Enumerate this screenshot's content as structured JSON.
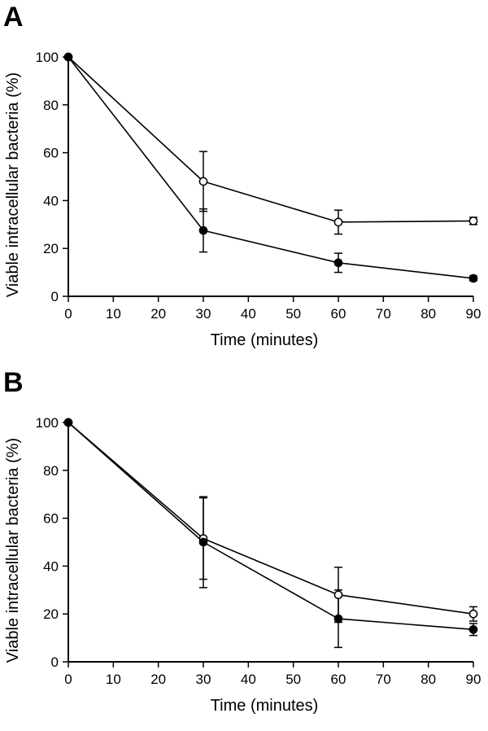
{
  "chart_data": [
    {
      "type": "line",
      "panel_label": "A",
      "xlabel": "Time (minutes)",
      "ylabel": "Viable intracellular bacteria (%)",
      "xlim": [
        0,
        90
      ],
      "ylim": [
        0,
        100
      ],
      "xticks": [
        0,
        10,
        20,
        30,
        40,
        50,
        60,
        70,
        80,
        90
      ],
      "yticks": [
        0,
        20,
        40,
        60,
        80,
        100
      ],
      "grid": false,
      "series": [
        {
          "marker": "open-circle",
          "x": [
            0,
            30,
            60,
            90
          ],
          "y": [
            100,
            48,
            31,
            31.5
          ],
          "error": [
            0,
            12.5,
            5,
            1.5
          ]
        },
        {
          "marker": "filled-circle",
          "x": [
            0,
            30,
            60,
            90
          ],
          "y": [
            100,
            27.5,
            14,
            7.5
          ],
          "error": [
            0,
            9,
            4,
            1
          ]
        }
      ]
    },
    {
      "type": "line",
      "panel_label": "B",
      "xlabel": "Time (minutes)",
      "ylabel": "Viable intracellular bacteria (%)",
      "xlim": [
        0,
        90
      ],
      "ylim": [
        0,
        100
      ],
      "xticks": [
        0,
        10,
        20,
        30,
        40,
        50,
        60,
        70,
        80,
        90
      ],
      "yticks": [
        0,
        20,
        40,
        60,
        80,
        100
      ],
      "grid": false,
      "series": [
        {
          "marker": "open-circle",
          "x": [
            0,
            30,
            60,
            90
          ],
          "y": [
            100,
            51.5,
            28,
            20
          ],
          "error": [
            0,
            17,
            11.5,
            3
          ]
        },
        {
          "marker": "filled-circle",
          "x": [
            0,
            30,
            60,
            90
          ],
          "y": [
            100,
            50,
            18,
            13.5
          ],
          "error": [
            0,
            19,
            12,
            2.5
          ]
        }
      ]
    }
  ]
}
